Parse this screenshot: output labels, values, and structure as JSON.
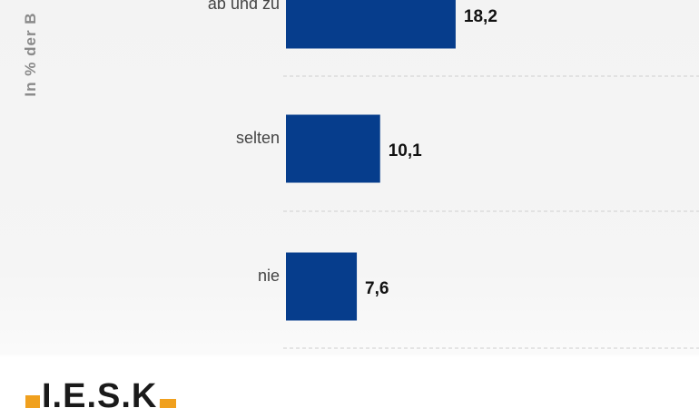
{
  "chart_data": {
    "type": "bar",
    "orientation": "horizontal",
    "categories": [
      "ab und zu",
      "selten",
      "nie"
    ],
    "values": [
      18.2,
      10.1,
      7.6
    ],
    "value_labels": [
      "18,2",
      "10,1",
      "7,6"
    ],
    "ylabel": "In % der B",
    "bar_color": "#063d8c",
    "grid": "dashed horizontal separators"
  },
  "logo": {
    "text": "I.E.S.K."
  },
  "colors": {
    "accent": "#f0a01e",
    "label_text": "#444444",
    "value_text": "#111111",
    "axis_title": "#8a8a8a"
  }
}
